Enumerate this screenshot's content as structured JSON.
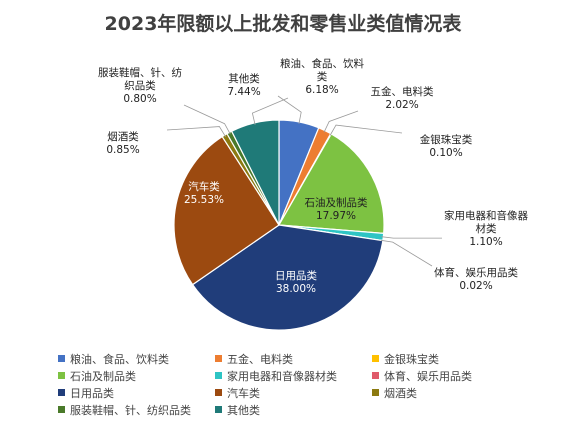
{
  "chart_data": {
    "type": "pie",
    "title": "2023年限额以上批发和零售业类值情况表",
    "slices": [
      {
        "name": "粮油、食品、饮料类",
        "value": 6.18,
        "label": "6.18%",
        "color": "#4472C4"
      },
      {
        "name": "五金、电料类",
        "value": 2.02,
        "label": "2.02%",
        "color": "#ED7D31"
      },
      {
        "name": "金银珠宝类",
        "value": 0.1,
        "label": "0.10%",
        "color": "#FFC000"
      },
      {
        "name": "石油及制品类",
        "value": 17.97,
        "label": "17.97%",
        "color": "#7DC242"
      },
      {
        "name": "家用电器和音像器材类",
        "value": 1.1,
        "label": "1.10%",
        "color": "#2EC4C4"
      },
      {
        "name": "体育、娱乐用品类",
        "value": 0.02,
        "label": "0.02%",
        "color": "#E05A6A"
      },
      {
        "name": "日用品类",
        "value": 38.0,
        "label": "38.00%",
        "color": "#203D7A"
      },
      {
        "name": "汽车类",
        "value": 25.53,
        "label": "25.53%",
        "color": "#9C4A10"
      },
      {
        "name": "烟酒类",
        "value": 0.85,
        "label": "0.85%",
        "color": "#8C7A10"
      },
      {
        "name": "服装鞋帽、针、纺织品类",
        "value": 0.8,
        "label": "0.80%",
        "color": "#4A7A2A"
      },
      {
        "name": "其他类",
        "value": 7.44,
        "label": "7.44%",
        "color": "#1F7A78"
      }
    ],
    "label_parts": {
      "粮油、食品、饮料类": [
        "粮油、食品、饮料",
        "类"
      ],
      "家用电器和音像器材类": [
        "家用电器和音像器",
        "材类"
      ],
      "服装鞋帽、针、纺织品类": [
        "服装鞋帽、针、纺",
        "织品类"
      ],
      "石油及制品类": [
        "石油及制品类"
      ]
    },
    "legend_placement": "bottom"
  }
}
